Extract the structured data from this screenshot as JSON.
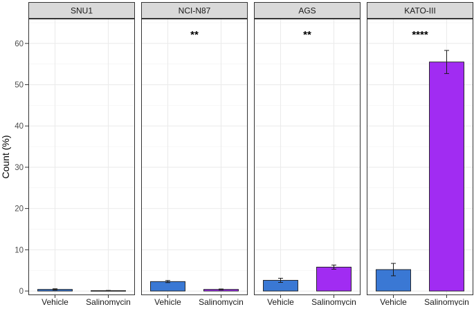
{
  "chart_data": {
    "type": "bar",
    "ylabel": "Count (%)",
    "ylim": [
      -1,
      66
    ],
    "y_ticks": [
      0,
      10,
      20,
      30,
      40,
      50,
      60
    ],
    "categories": [
      "Vehicle",
      "Salinomycin"
    ],
    "grid": true,
    "colors": {
      "Vehicle": "#3a78d4",
      "Salinomycin": "#a12cf2"
    },
    "panels": [
      {
        "name": "SNU1",
        "significance": "",
        "values": [
          0.4,
          0.1
        ],
        "errors": [
          0.15,
          0.05
        ]
      },
      {
        "name": "NCI-N87",
        "significance": "**",
        "values": [
          2.3,
          0.4
        ],
        "errors": [
          0.25,
          0.1
        ]
      },
      {
        "name": "AGS",
        "significance": "**",
        "values": [
          2.6,
          5.8
        ],
        "errors": [
          0.5,
          0.5
        ]
      },
      {
        "name": "KATO-III",
        "significance": "****",
        "values": [
          5.2,
          55.5
        ],
        "errors": [
          1.5,
          2.8
        ]
      }
    ]
  }
}
